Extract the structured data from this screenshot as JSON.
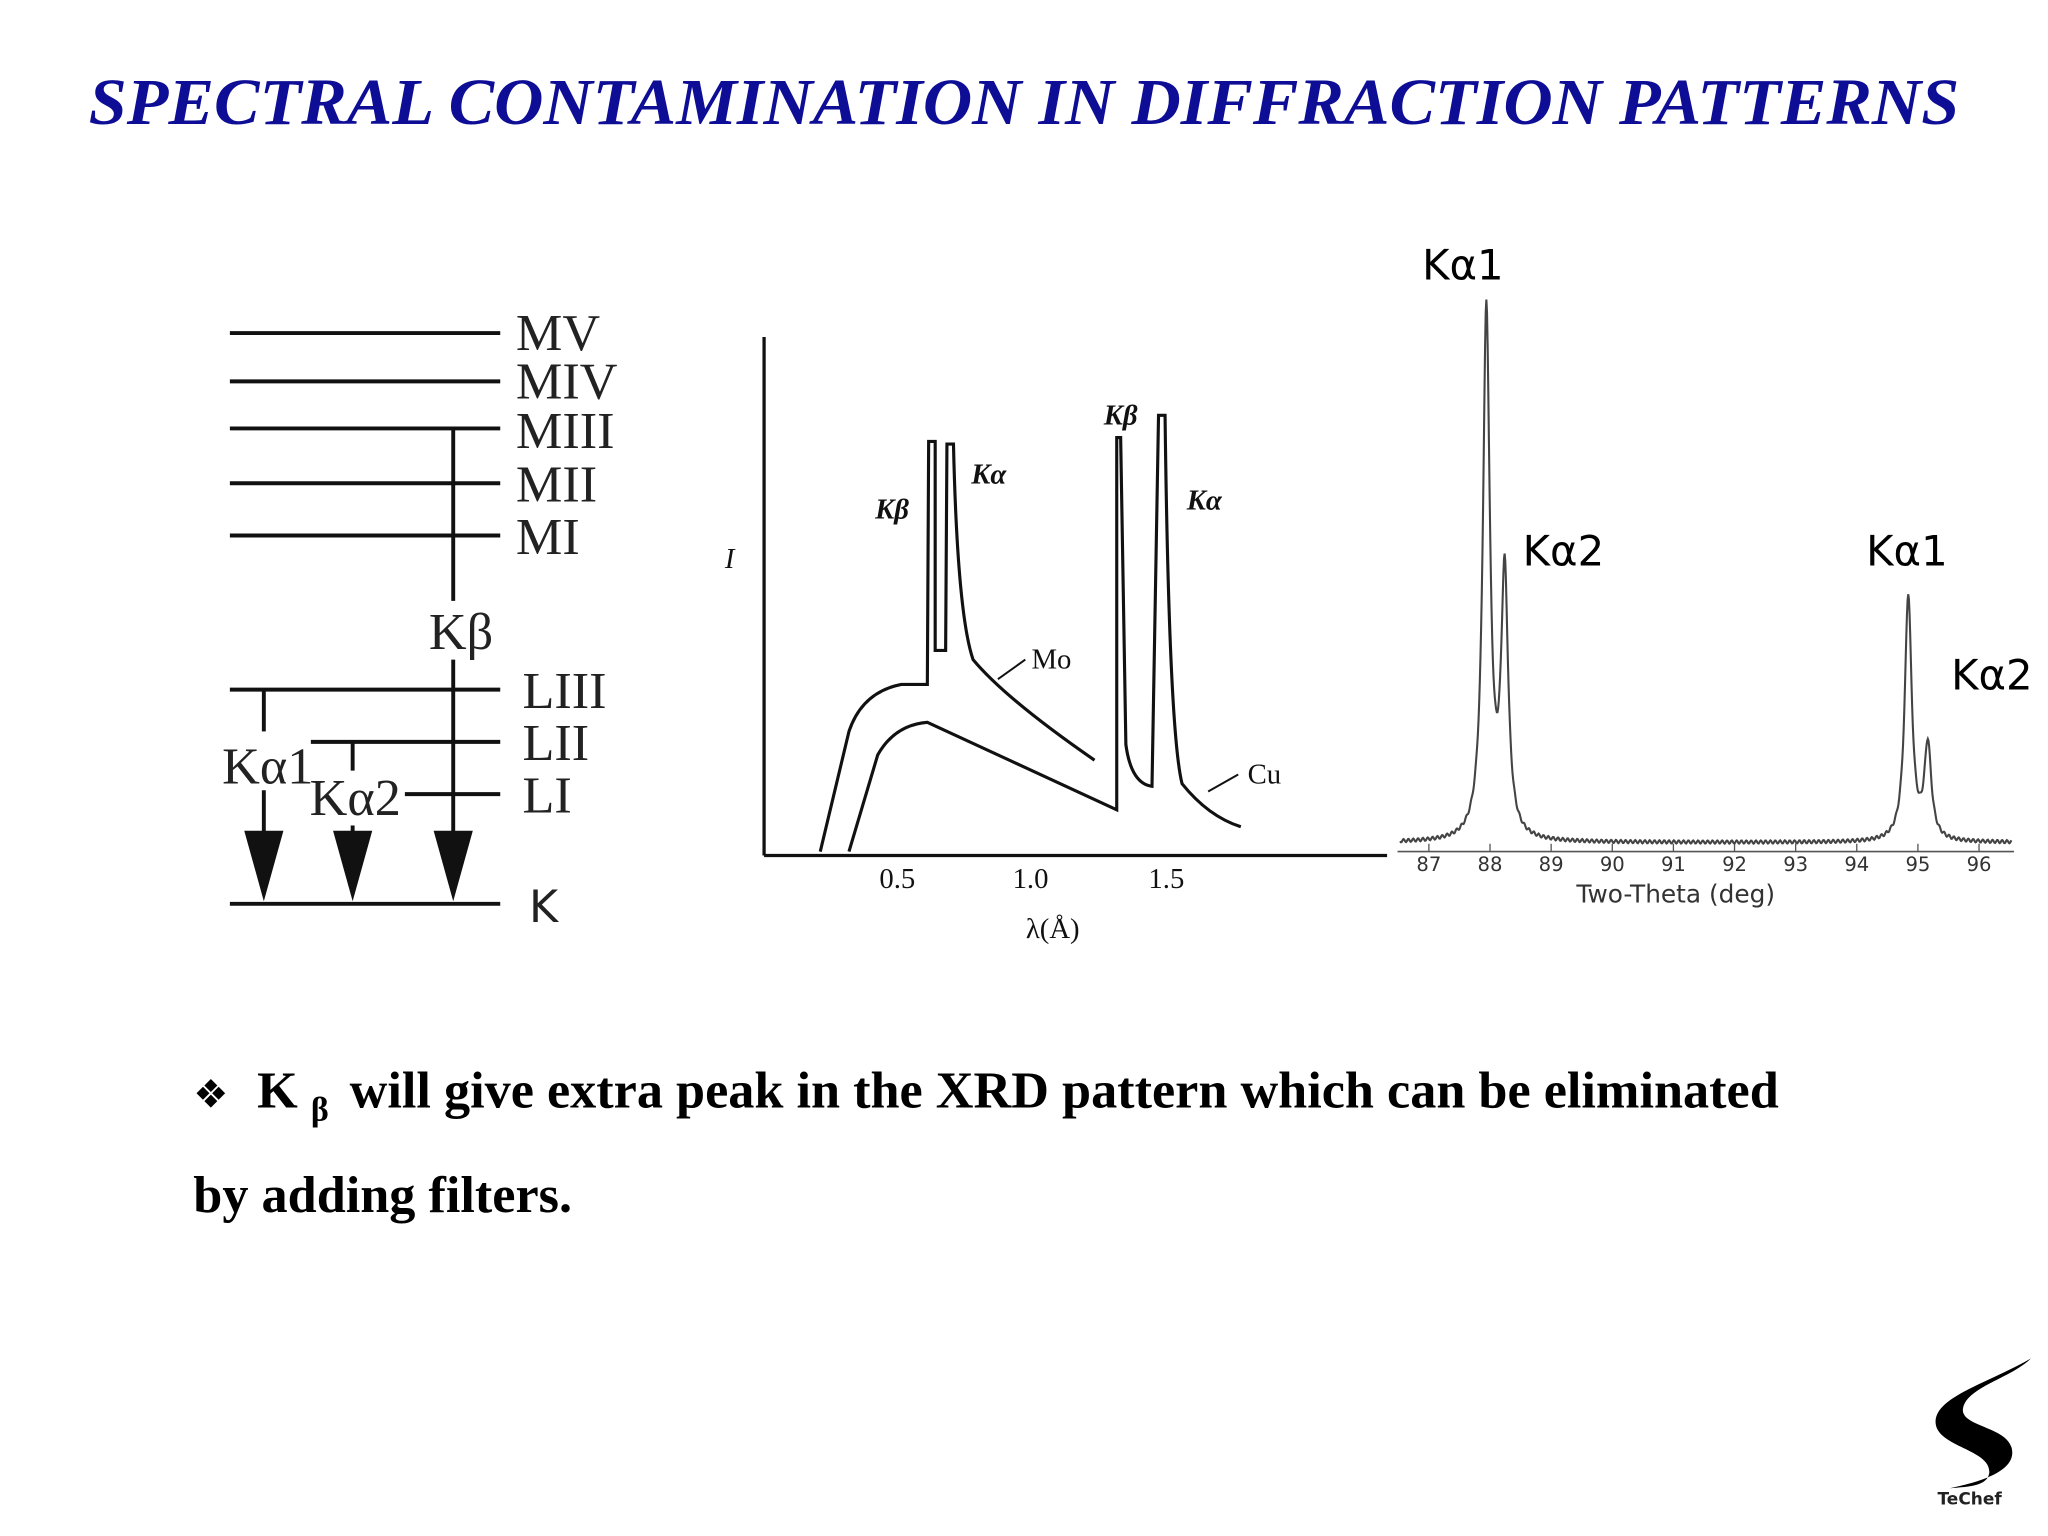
{
  "title": "SPECTRAL CONTAMINATION IN DIFFRACTION PATTERNS",
  "energy_diagram": {
    "levels": [
      "MV",
      "MIV",
      "MIII",
      "MII",
      "MI",
      "LIII",
      "LII",
      "LI",
      "K"
    ],
    "transitions": [
      "Kβ",
      "Kα1",
      "Kα2"
    ]
  },
  "spectrum": {
    "y_label": "I",
    "x_label": "λ(Å)",
    "x_ticks": [
      "0.5",
      "1.0",
      "1.5"
    ],
    "labels": [
      "Kβ",
      "Kα",
      "Kβ",
      "Kα",
      "Mo",
      "Cu"
    ]
  },
  "xrd": {
    "x_label": "Two-Theta (deg)",
    "x_ticks": [
      "87",
      "88",
      "89",
      "90",
      "91",
      "92",
      "93",
      "94",
      "95",
      "96"
    ],
    "peak_labels": [
      "Kα1",
      "Kα2",
      "Kα1",
      "Kα2"
    ]
  },
  "bullet": {
    "symbol": "❖",
    "k": "K",
    "subscript": "β",
    "line1": "will give extra peak in the XRD pattern which can be eliminated",
    "line2": "by adding filters."
  },
  "logo": {
    "name": "TeChef"
  }
}
